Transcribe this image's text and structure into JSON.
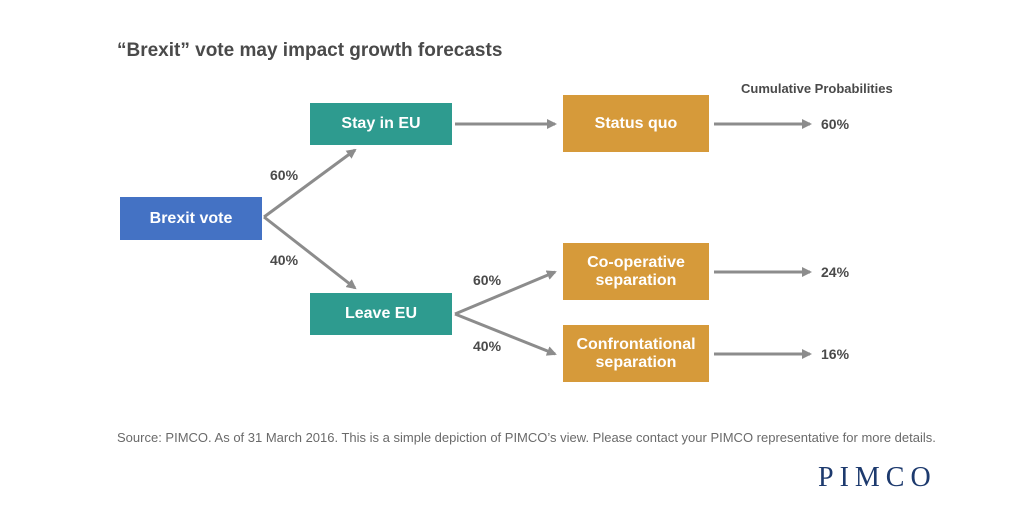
{
  "title": "“Brexit” vote may impact growth forecasts",
  "cumulative_label": "Cumulative Probabilities",
  "nodes": {
    "brexit_vote": "Brexit vote",
    "stay_eu": "Stay in EU",
    "leave_eu": "Leave EU",
    "status_quo": "Status quo",
    "coop": "Co-operative separation",
    "confront": "Confrontational separation"
  },
  "branch_probs": {
    "stay": "60%",
    "leave": "40%",
    "coop": "60%",
    "confront": "40%"
  },
  "cumulative": {
    "status_quo": "60%",
    "coop": "24%",
    "confront": "16%"
  },
  "source": "Source: PIMCO. As of 31 March 2016. This is a simple depiction of PIMCO’s view. Please contact your PIMCO representative for more details.",
  "logo_text": "PIMCO",
  "colors": {
    "brexit_vote": "#4472c4",
    "eu_nodes": "#2e9b8f",
    "outcomes": "#d69a3a",
    "arrows": "#8c8c8c"
  }
}
